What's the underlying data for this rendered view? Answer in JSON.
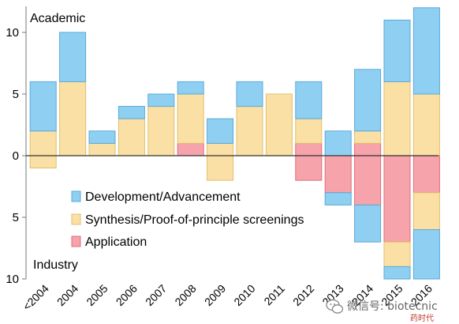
{
  "chart_data": {
    "type": "bar",
    "stacked": true,
    "diverging": true,
    "title": "",
    "xlabel": "",
    "ylabel": "",
    "upper_region_label": "Academic",
    "lower_region_label": "Industry",
    "categories": [
      "<2004",
      "2004",
      "2005",
      "2006",
      "2007",
      "2008",
      "2009",
      "2010",
      "2011",
      "2012",
      "2013",
      "2014",
      "2015",
      "2016"
    ],
    "ylim_academic": [
      0,
      12
    ],
    "ylim_industry": [
      0,
      10
    ],
    "y_tick_labels": [
      "10",
      "5",
      "0",
      "5",
      "10"
    ],
    "legend_position": "bottom-left",
    "series": [
      {
        "name": "Development/Advancement",
        "color": "#8fd0f2",
        "academic": [
          4,
          4,
          1,
          1,
          1,
          1,
          2,
          2,
          0,
          3,
          2,
          5,
          5,
          7
        ],
        "industry": [
          0,
          0,
          0,
          0,
          0,
          0,
          0,
          0,
          0,
          0,
          1,
          3,
          1,
          4
        ]
      },
      {
        "name": "Synthesis/Proof-of-principle screenings",
        "color": "#fbe0a5",
        "academic": [
          2,
          6,
          1,
          3,
          4,
          4,
          1,
          4,
          5,
          2,
          0,
          1,
          6,
          5
        ],
        "industry": [
          1,
          0,
          0,
          0,
          0,
          0,
          2,
          0,
          0,
          0,
          0,
          0,
          2,
          3
        ]
      },
      {
        "name": "Application",
        "color": "#f6a3ab",
        "academic": [
          0,
          0,
          0,
          0,
          0,
          1,
          0,
          0,
          0,
          1,
          0,
          1,
          0,
          0
        ],
        "industry": [
          0,
          0,
          0,
          0,
          0,
          0,
          0,
          0,
          0,
          2,
          3,
          4,
          7,
          3
        ]
      }
    ]
  },
  "watermark": {
    "icon": "wechat-icon",
    "text": "微信号: biotecnic",
    "sub_text": "药时代"
  }
}
